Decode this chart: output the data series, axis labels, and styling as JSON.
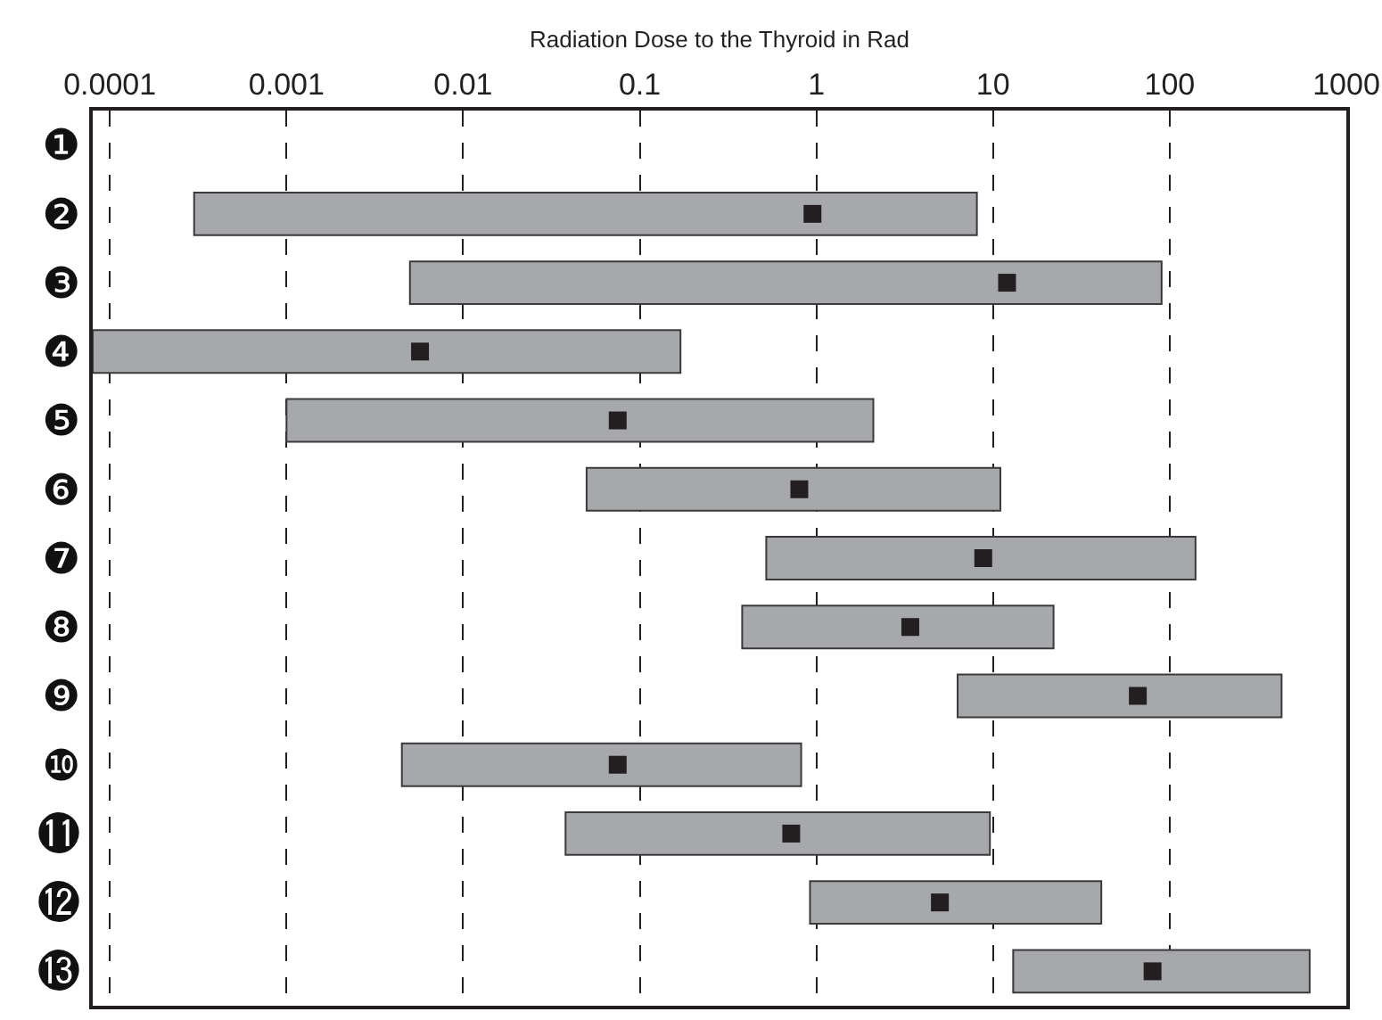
{
  "chart_data": {
    "type": "bar",
    "orientation": "horizontal",
    "log": "x",
    "xlabel": "Radiation Dose to the Thyroid in Rad",
    "categories": [
      "❶",
      "❷",
      "❸",
      "❹",
      "❺",
      "❻",
      "❼",
      "❽",
      "❾",
      "❿",
      "⓫",
      "⓬",
      "⓭"
    ],
    "series": [
      {
        "color": "#a7a8ab",
        "base": [
          null,
          0.0003,
          0.005,
          8e-05,
          0.001,
          0.05,
          0.52,
          0.38,
          6.3,
          0.0045,
          0.038,
          0.92,
          13
        ],
        "values": [
          null,
          8.0997,
          89.995,
          0.16992,
          2.099,
          10.95,
          139.48,
          21.62,
          423.7,
          0.8155,
          9.562,
          40.08,
          607
        ]
      },
      {
        "type": "scatter",
        "color": "#231f20",
        "values": [
          null,
          0.95,
          12,
          0.0057,
          0.075,
          0.8,
          8.8,
          3.4,
          66,
          0.075,
          0.72,
          5,
          80
        ]
      }
    ],
    "xlim": [
      8e-05,
      1000
    ],
    "xticks": [
      0.0001,
      0.001,
      0.01,
      0.1,
      1,
      10,
      100,
      1000
    ],
    "marker": "square",
    "grid": "x",
    "line_style": "dashed"
  }
}
